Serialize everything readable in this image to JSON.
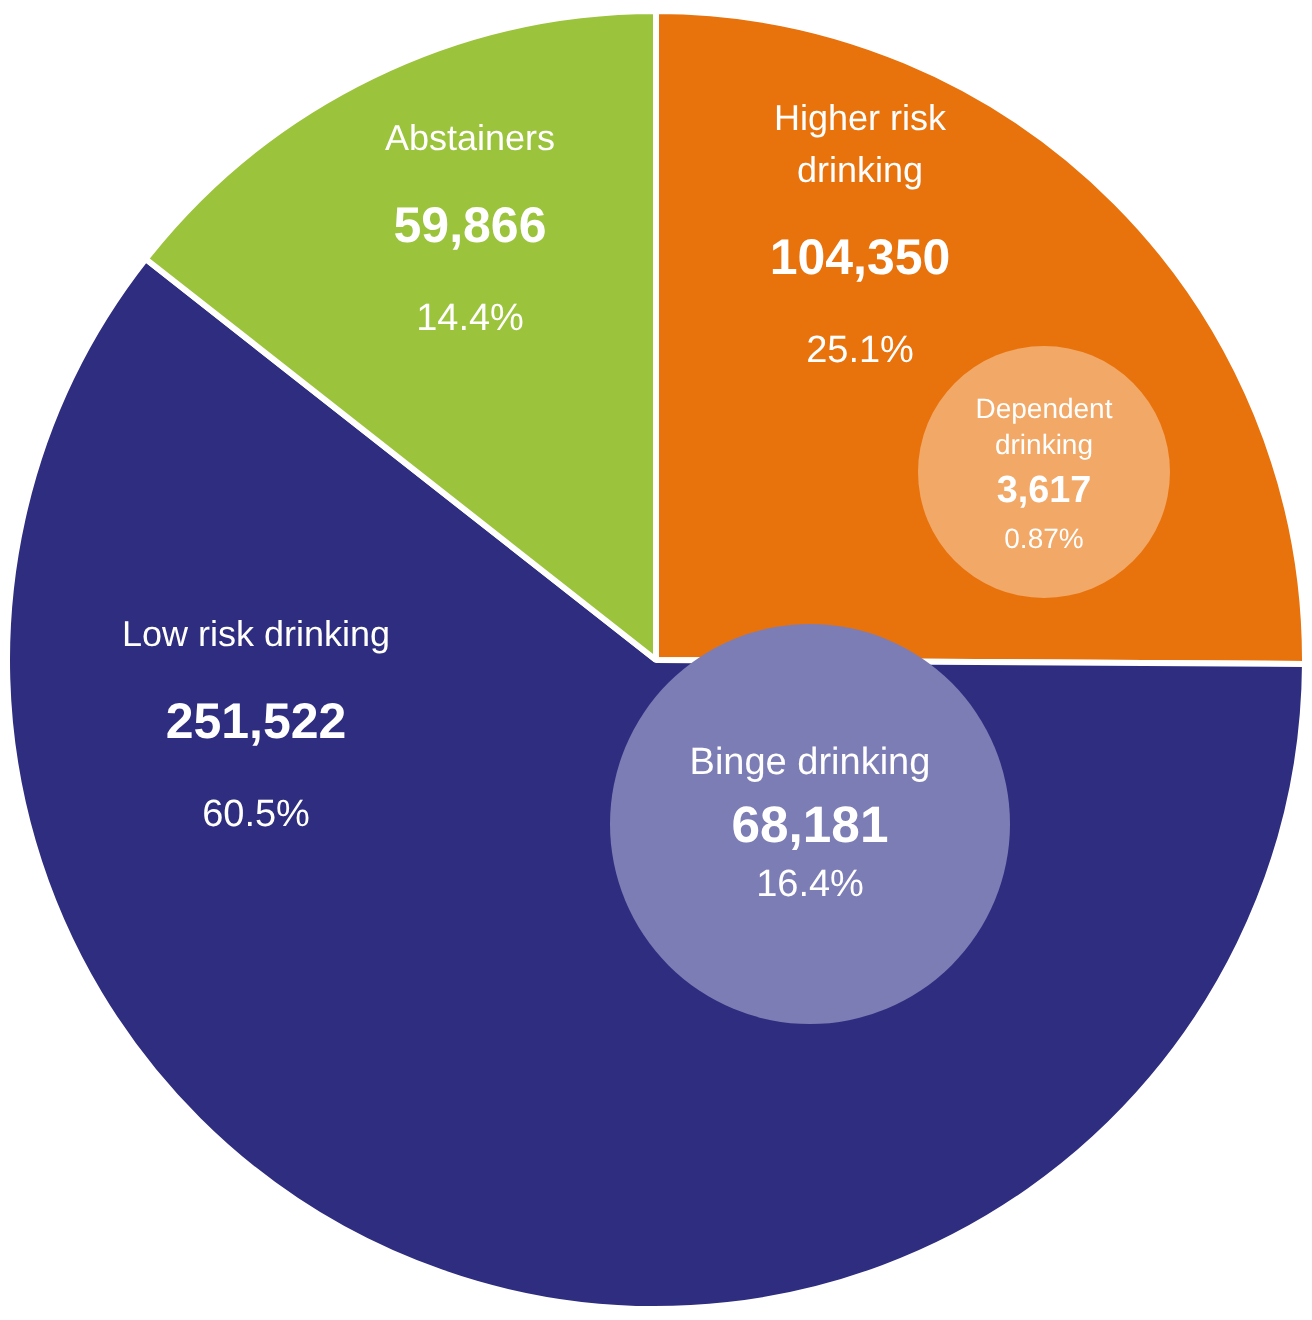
{
  "chart_data": {
    "type": "pie",
    "categories": [
      "Higher risk drinking",
      "Low risk drinking",
      "Abstainers"
    ],
    "values": [
      104350,
      251522,
      59866
    ],
    "colors": [
      "#e8720c",
      "#2e2d7f",
      "#9bc33c"
    ],
    "value_labels": [
      "104,350",
      "251,522",
      "59,866"
    ],
    "annotations": [
      "25.1%",
      "60.5%",
      "14.4%",
      "Dependent drinking",
      "3,617",
      "0.87%",
      "Binge drinking",
      "68,181",
      "16.4%"
    ],
    "legend": false
  }
}
